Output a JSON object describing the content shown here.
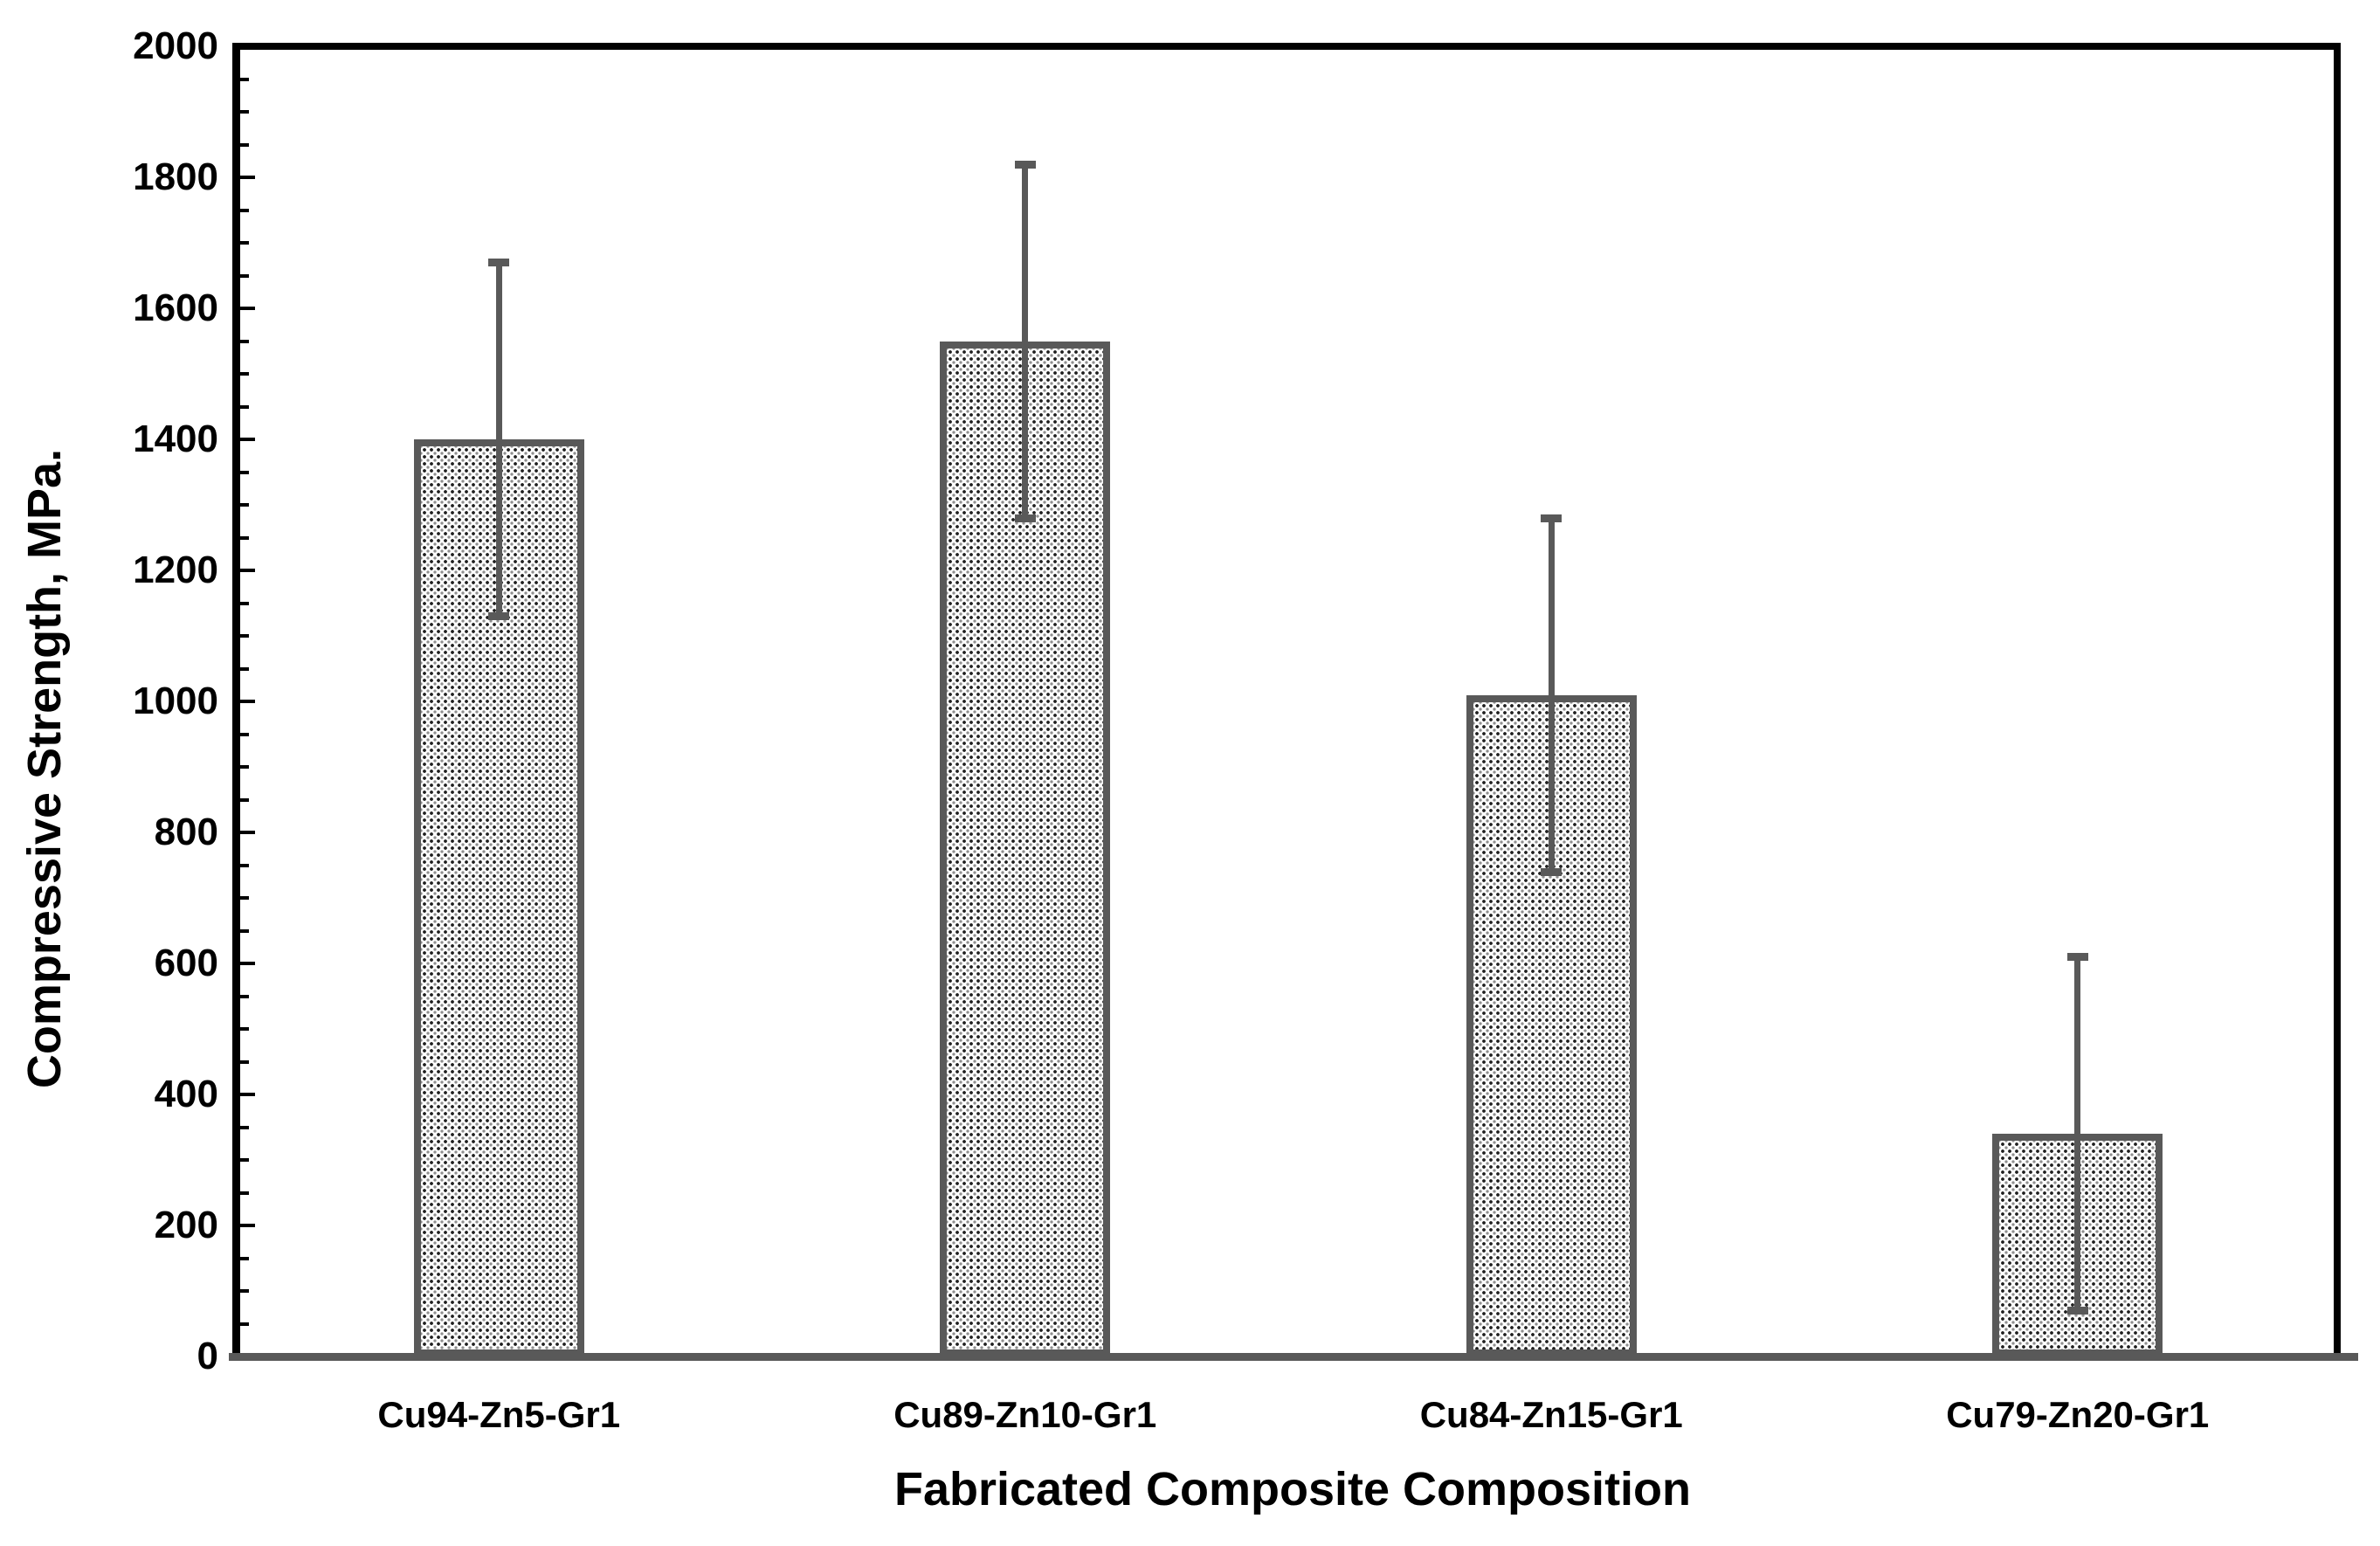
{
  "chart_data": {
    "type": "bar",
    "title": "",
    "xlabel": "Fabricated Composite Composition",
    "ylabel": "Compressive Strength, MPa.",
    "categories": [
      "Cu94-Zn5-Gr1",
      "Cu89-Zn10-Gr1",
      "Cu84-Zn15-Gr1",
      "Cu79-Zn20-Gr1"
    ],
    "values": [
      1400,
      1550,
      1010,
      340
    ],
    "error_bars": {
      "whisker_top": [
        1670,
        1820,
        1280,
        610
      ],
      "whisker_bottom": [
        1130,
        1280,
        740,
        70
      ]
    },
    "ylim": [
      0,
      2000
    ],
    "ytick_interval": 200,
    "y_minor_interval": 50,
    "ytick_labels": [
      "0",
      "200",
      "400",
      "600",
      "800",
      "1000",
      "1200",
      "1400",
      "1600",
      "1800",
      "2000"
    ],
    "grid": false,
    "legend": "none",
    "bar_pattern": "dotted",
    "colors": {
      "bar_border": "#595959",
      "error_bar": "#595959",
      "axis_frame": "#000000",
      "baseline": "#595959",
      "text": "#000000",
      "background": "#ffffff"
    }
  }
}
